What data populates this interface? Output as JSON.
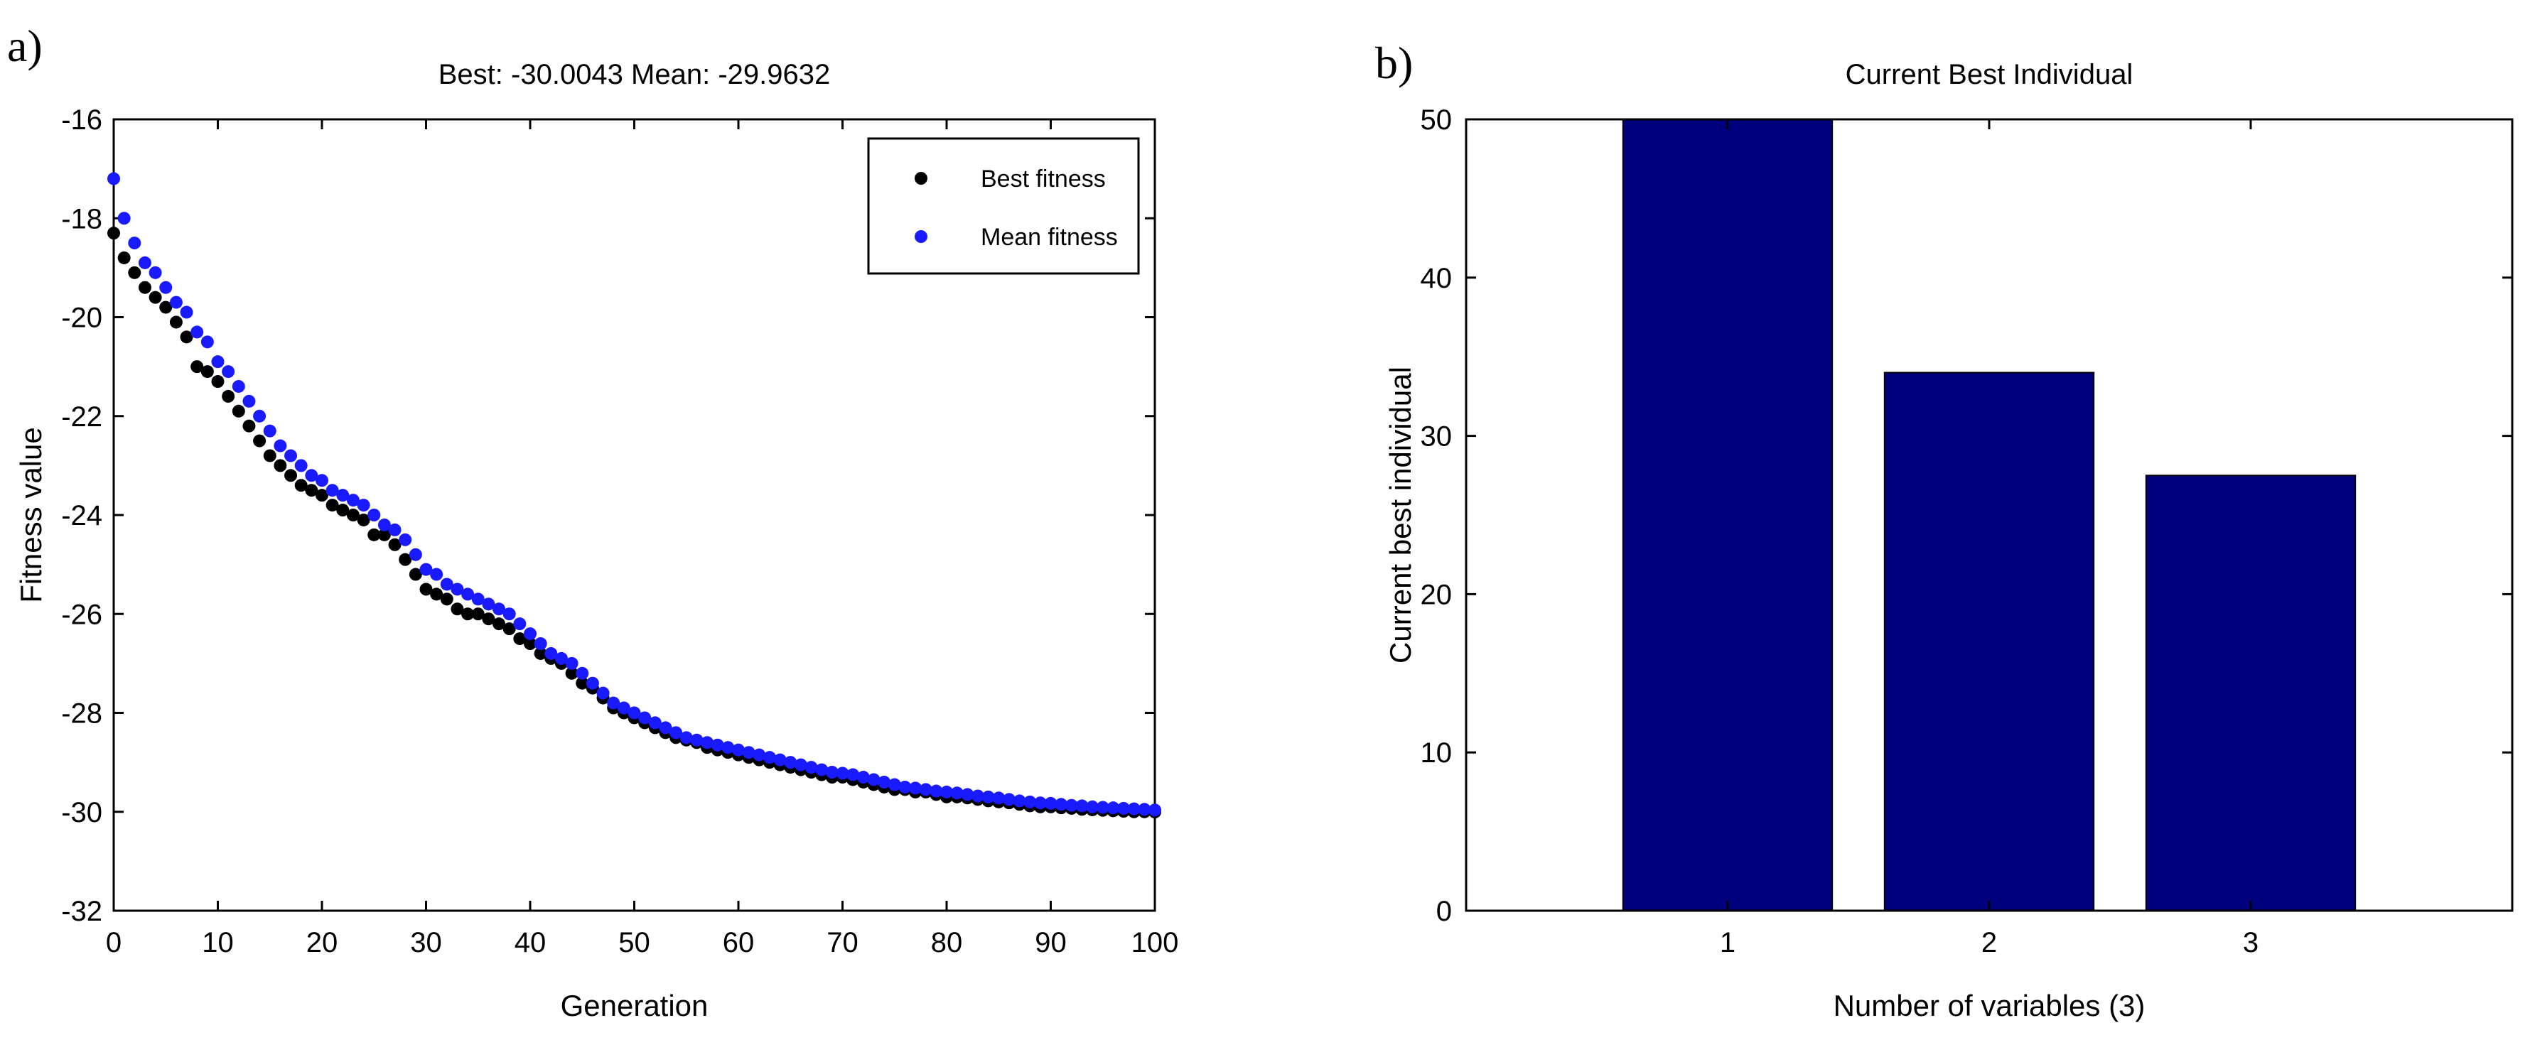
{
  "panels": {
    "a_label": "a)",
    "b_label": "b)"
  },
  "chart_data": [
    {
      "type": "scatter",
      "title": "Best: -30.0043 Mean: -29.9632",
      "xlabel": "Generation",
      "ylabel": "Fitness value",
      "xlim": [
        0,
        100
      ],
      "ylim": [
        -32,
        -16
      ],
      "xticks": [
        0,
        10,
        20,
        30,
        40,
        50,
        60,
        70,
        80,
        90,
        100
      ],
      "yticks": [
        -32,
        -30,
        -28,
        -26,
        -24,
        -22,
        -20,
        -18,
        -16
      ],
      "legend": {
        "position": "top-right",
        "entries": [
          "Best fitness",
          "Mean fitness"
        ]
      },
      "series": [
        {
          "name": "Best fitness",
          "color": "#000000",
          "x": [
            0,
            1,
            2,
            3,
            4,
            5,
            6,
            7,
            8,
            9,
            10,
            11,
            12,
            13,
            14,
            15,
            16,
            17,
            18,
            19,
            20,
            21,
            22,
            23,
            24,
            25,
            26,
            27,
            28,
            29,
            30,
            31,
            32,
            33,
            34,
            35,
            36,
            37,
            38,
            39,
            40,
            41,
            42,
            43,
            44,
            45,
            46,
            47,
            48,
            49,
            50,
            51,
            52,
            53,
            54,
            55,
            56,
            57,
            58,
            59,
            60,
            61,
            62,
            63,
            64,
            65,
            66,
            67,
            68,
            69,
            70,
            71,
            72,
            73,
            74,
            75,
            76,
            77,
            78,
            79,
            80,
            81,
            82,
            83,
            84,
            85,
            86,
            87,
            88,
            89,
            90,
            91,
            92,
            93,
            94,
            95,
            96,
            97,
            98,
            99,
            100
          ],
          "values": [
            -18.3,
            -18.8,
            -19.1,
            -19.4,
            -19.6,
            -19.8,
            -20.1,
            -20.4,
            -21.0,
            -21.1,
            -21.3,
            -21.6,
            -21.9,
            -22.2,
            -22.5,
            -22.8,
            -23.0,
            -23.2,
            -23.4,
            -23.5,
            -23.6,
            -23.8,
            -23.9,
            -24.0,
            -24.1,
            -24.4,
            -24.4,
            -24.6,
            -24.9,
            -25.2,
            -25.5,
            -25.6,
            -25.7,
            -25.9,
            -26.0,
            -26.0,
            -26.1,
            -26.2,
            -26.3,
            -26.5,
            -26.6,
            -26.8,
            -26.9,
            -27.0,
            -27.2,
            -27.4,
            -27.5,
            -27.7,
            -27.9,
            -28.0,
            -28.1,
            -28.2,
            -28.3,
            -28.4,
            -28.5,
            -28.55,
            -28.6,
            -28.7,
            -28.75,
            -28.8,
            -28.85,
            -28.9,
            -28.95,
            -29.0,
            -29.05,
            -29.1,
            -29.15,
            -29.2,
            -29.25,
            -29.3,
            -29.3,
            -29.35,
            -29.4,
            -29.45,
            -29.5,
            -29.55,
            -29.55,
            -29.6,
            -29.6,
            -29.65,
            -29.7,
            -29.7,
            -29.72,
            -29.75,
            -29.78,
            -29.8,
            -29.82,
            -29.85,
            -29.88,
            -29.9,
            -29.9,
            -29.92,
            -29.93,
            -29.95,
            -29.96,
            -29.97,
            -29.98,
            -29.99,
            -30.0,
            -30.0,
            -30.0043
          ]
        },
        {
          "name": "Mean fitness",
          "color": "#1a1aff",
          "x": [
            0,
            1,
            2,
            3,
            4,
            5,
            6,
            7,
            8,
            9,
            10,
            11,
            12,
            13,
            14,
            15,
            16,
            17,
            18,
            19,
            20,
            21,
            22,
            23,
            24,
            25,
            26,
            27,
            28,
            29,
            30,
            31,
            32,
            33,
            34,
            35,
            36,
            37,
            38,
            39,
            40,
            41,
            42,
            43,
            44,
            45,
            46,
            47,
            48,
            49,
            50,
            51,
            52,
            53,
            54,
            55,
            56,
            57,
            58,
            59,
            60,
            61,
            62,
            63,
            64,
            65,
            66,
            67,
            68,
            69,
            70,
            71,
            72,
            73,
            74,
            75,
            76,
            77,
            78,
            79,
            80,
            81,
            82,
            83,
            84,
            85,
            86,
            87,
            88,
            89,
            90,
            91,
            92,
            93,
            94,
            95,
            96,
            97,
            98,
            99,
            100
          ],
          "values": [
            -17.2,
            -18.0,
            -18.5,
            -18.9,
            -19.1,
            -19.4,
            -19.7,
            -19.9,
            -20.3,
            -20.5,
            -20.9,
            -21.1,
            -21.4,
            -21.7,
            -22.0,
            -22.3,
            -22.6,
            -22.8,
            -23.0,
            -23.2,
            -23.3,
            -23.5,
            -23.6,
            -23.7,
            -23.8,
            -24.0,
            -24.2,
            -24.3,
            -24.5,
            -24.8,
            -25.1,
            -25.2,
            -25.4,
            -25.5,
            -25.6,
            -25.7,
            -25.8,
            -25.9,
            -26.0,
            -26.2,
            -26.4,
            -26.6,
            -26.8,
            -26.9,
            -27.0,
            -27.2,
            -27.4,
            -27.6,
            -27.8,
            -27.9,
            -28.0,
            -28.1,
            -28.2,
            -28.3,
            -28.4,
            -28.5,
            -28.55,
            -28.6,
            -28.65,
            -28.7,
            -28.75,
            -28.8,
            -28.85,
            -28.9,
            -28.95,
            -29.0,
            -29.05,
            -29.1,
            -29.15,
            -29.2,
            -29.22,
            -29.25,
            -29.3,
            -29.35,
            -29.4,
            -29.45,
            -29.5,
            -29.52,
            -29.55,
            -29.58,
            -29.6,
            -29.62,
            -29.65,
            -29.68,
            -29.7,
            -29.72,
            -29.75,
            -29.78,
            -29.8,
            -29.82,
            -29.83,
            -29.85,
            -29.87,
            -29.88,
            -29.9,
            -29.91,
            -29.92,
            -29.93,
            -29.94,
            -29.95,
            -29.9632
          ]
        }
      ]
    },
    {
      "type": "bar",
      "title": "Current Best Individual",
      "xlabel": "Number of variables (3)",
      "ylabel": "Current best individual",
      "categories": [
        "1",
        "2",
        "3"
      ],
      "values": [
        50,
        34,
        27.5
      ],
      "ylim": [
        0,
        50
      ],
      "xlim": [
        0,
        4
      ],
      "yticks": [
        0,
        10,
        20,
        30,
        40,
        50
      ],
      "bar_color": "#00007f"
    }
  ]
}
